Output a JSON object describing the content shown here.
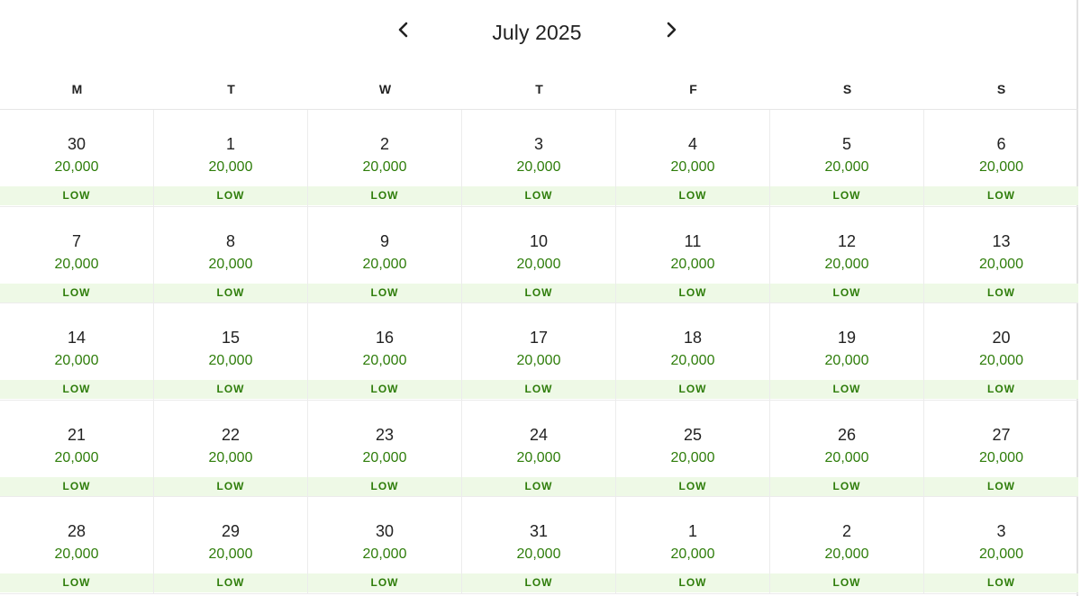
{
  "calendar": {
    "month_title": "July 2025",
    "prev_icon": "chevron-left-icon",
    "next_icon": "chevron-right-icon",
    "weekdays": [
      "M",
      "T",
      "W",
      "T",
      "F",
      "S",
      "S"
    ],
    "colors": {
      "price": "#2e7d0a",
      "band_bg": "#eef9e6",
      "text": "#222222"
    },
    "weeks": [
      [
        {
          "day": "30",
          "price": "20,000",
          "level": "LOW"
        },
        {
          "day": "1",
          "price": "20,000",
          "level": "LOW"
        },
        {
          "day": "2",
          "price": "20,000",
          "level": "LOW"
        },
        {
          "day": "3",
          "price": "20,000",
          "level": "LOW"
        },
        {
          "day": "4",
          "price": "20,000",
          "level": "LOW"
        },
        {
          "day": "5",
          "price": "20,000",
          "level": "LOW"
        },
        {
          "day": "6",
          "price": "20,000",
          "level": "LOW"
        }
      ],
      [
        {
          "day": "7",
          "price": "20,000",
          "level": "LOW"
        },
        {
          "day": "8",
          "price": "20,000",
          "level": "LOW"
        },
        {
          "day": "9",
          "price": "20,000",
          "level": "LOW"
        },
        {
          "day": "10",
          "price": "20,000",
          "level": "LOW"
        },
        {
          "day": "11",
          "price": "20,000",
          "level": "LOW"
        },
        {
          "day": "12",
          "price": "20,000",
          "level": "LOW"
        },
        {
          "day": "13",
          "price": "20,000",
          "level": "LOW"
        }
      ],
      [
        {
          "day": "14",
          "price": "20,000",
          "level": "LOW"
        },
        {
          "day": "15",
          "price": "20,000",
          "level": "LOW"
        },
        {
          "day": "16",
          "price": "20,000",
          "level": "LOW"
        },
        {
          "day": "17",
          "price": "20,000",
          "level": "LOW"
        },
        {
          "day": "18",
          "price": "20,000",
          "level": "LOW"
        },
        {
          "day": "19",
          "price": "20,000",
          "level": "LOW"
        },
        {
          "day": "20",
          "price": "20,000",
          "level": "LOW"
        }
      ],
      [
        {
          "day": "21",
          "price": "20,000",
          "level": "LOW"
        },
        {
          "day": "22",
          "price": "20,000",
          "level": "LOW"
        },
        {
          "day": "23",
          "price": "20,000",
          "level": "LOW"
        },
        {
          "day": "24",
          "price": "20,000",
          "level": "LOW"
        },
        {
          "day": "25",
          "price": "20,000",
          "level": "LOW"
        },
        {
          "day": "26",
          "price": "20,000",
          "level": "LOW"
        },
        {
          "day": "27",
          "price": "20,000",
          "level": "LOW"
        }
      ],
      [
        {
          "day": "28",
          "price": "20,000",
          "level": "LOW"
        },
        {
          "day": "29",
          "price": "20,000",
          "level": "LOW"
        },
        {
          "day": "30",
          "price": "20,000",
          "level": "LOW"
        },
        {
          "day": "31",
          "price": "20,000",
          "level": "LOW"
        },
        {
          "day": "1",
          "price": "20,000",
          "level": "LOW"
        },
        {
          "day": "2",
          "price": "20,000",
          "level": "LOW"
        },
        {
          "day": "3",
          "price": "20,000",
          "level": "LOW"
        }
      ]
    ]
  }
}
